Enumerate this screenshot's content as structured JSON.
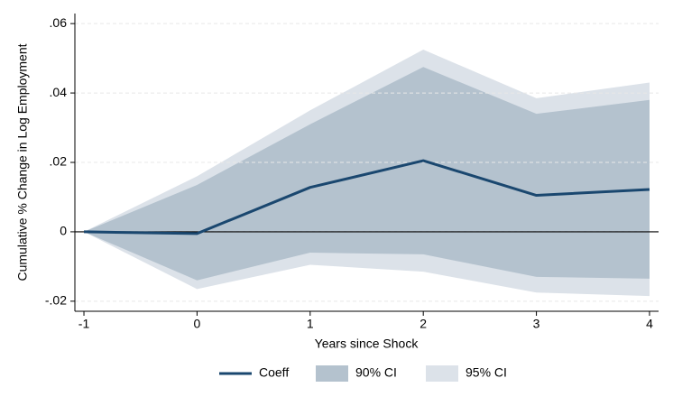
{
  "chart_data": {
    "type": "line",
    "x": [
      -1,
      0,
      1,
      2,
      3,
      4
    ],
    "x_label": "Years since Shock",
    "y_label": "Cumulative % Change in Log Employment",
    "series": [
      {
        "name": "Coeff",
        "type": "line",
        "color": "#1a476f",
        "values": [
          0,
          -0.0005,
          0.0128,
          0.0205,
          0.0105,
          0.0122
        ]
      },
      {
        "name": "90% CI",
        "type": "band",
        "color": "#b4c2ce",
        "lower": [
          0,
          -0.014,
          -0.006,
          -0.0065,
          -0.013,
          -0.0135
        ],
        "upper": [
          0,
          0.0135,
          0.031,
          0.0475,
          0.034,
          0.038
        ]
      },
      {
        "name": "95% CI",
        "type": "band",
        "color": "#dce2e9",
        "lower": [
          0,
          -0.0165,
          -0.0095,
          -0.0115,
          -0.0175,
          -0.0185
        ],
        "upper": [
          0,
          0.016,
          0.035,
          0.0525,
          0.0385,
          0.043
        ]
      }
    ],
    "xlim": [
      -1.08,
      4.08
    ],
    "xticks": [
      -1,
      0,
      1,
      2,
      3,
      4
    ],
    "ylim": [
      -0.0229,
      0.0629
    ],
    "yticks": [
      {
        "value": -0.02,
        "label": "-.02"
      },
      0,
      {
        "value": 0.02,
        "label": ".02"
      },
      {
        "value": 0.04,
        "label": ".04"
      },
      {
        "value": 0.06,
        "label": ".06"
      }
    ],
    "yline": 0,
    "grid": true,
    "legend": "bottom"
  }
}
